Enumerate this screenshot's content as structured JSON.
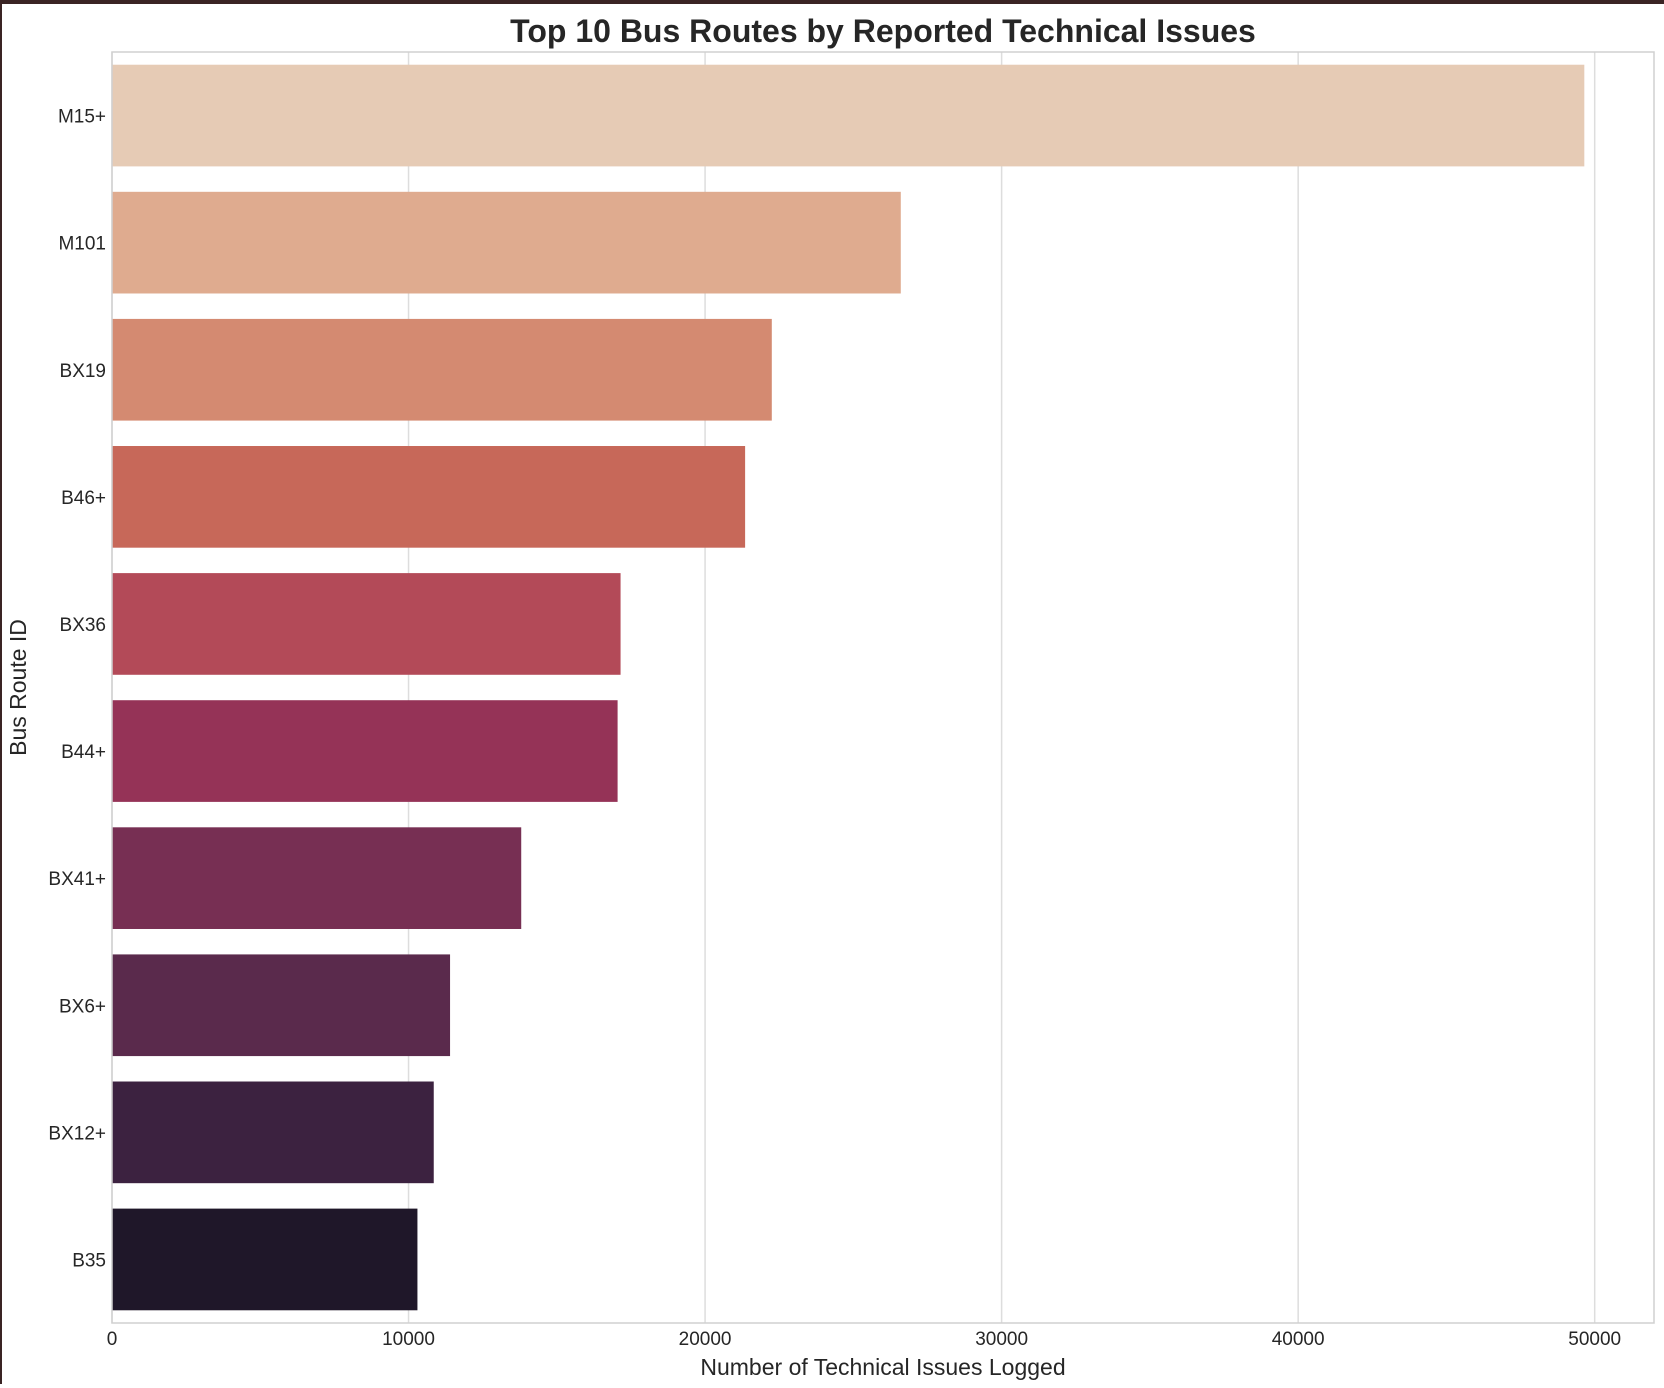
{
  "chart_data": {
    "type": "bar",
    "orientation": "horizontal",
    "title": "Top 10 Bus Routes by Reported Technical Issues",
    "xlabel": "Number of Technical Issues Logged",
    "ylabel": "Bus Route ID",
    "categories": [
      "M15+",
      "M101",
      "BX19",
      "B46+",
      "BX36",
      "B44+",
      "BX41+",
      "BX6+",
      "BX12+",
      "B35"
    ],
    "values": [
      49650,
      26600,
      22250,
      21350,
      17150,
      17050,
      13800,
      11400,
      10850,
      10300
    ],
    "colors": [
      "#e6cbb5",
      "#dfab8f",
      "#d48a71",
      "#c76859",
      "#b34a58",
      "#953357",
      "#772f53",
      "#5a2a4c",
      "#3c2240",
      "#1f1729"
    ],
    "xlim": [
      0,
      52000
    ],
    "xticks": [
      0,
      10000,
      20000,
      30000,
      40000,
      50000
    ],
    "xtick_labels": [
      "0",
      "10000",
      "20000",
      "30000",
      "40000",
      "50000"
    ],
    "grid": "vertical",
    "legend": "none"
  }
}
